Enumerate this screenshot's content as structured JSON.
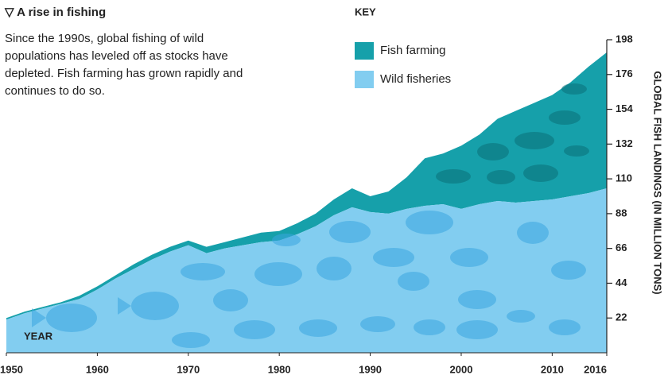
{
  "chart_data": {
    "type": "stacked-area",
    "title": "A rise in fishing",
    "subtitle": "Since the 1990s, global fishing of wild populations has leveled off as stocks have depleted. Fish farming has grown rapidly and continues to do so.",
    "legend_title": "KEY",
    "x_label": "YEAR",
    "y_label": "GLOBAL FISH LANDINGS (IN MILLION TONS)",
    "x": [
      1950,
      1952,
      1954,
      1956,
      1958,
      1960,
      1962,
      1964,
      1966,
      1968,
      1970,
      1972,
      1974,
      1976,
      1978,
      1980,
      1982,
      1984,
      1986,
      1988,
      1990,
      1992,
      1994,
      1996,
      1998,
      2000,
      2002,
      2004,
      2006,
      2008,
      2010,
      2012,
      2014,
      2016
    ],
    "series": [
      {
        "name": "Wild fisheries",
        "color": "#82cdf0",
        "values": [
          21,
          25,
          28,
          31,
          34,
          40,
          47,
          53,
          59,
          64,
          68,
          63,
          66,
          68,
          70,
          71,
          75,
          80,
          87,
          92,
          89,
          88,
          91,
          93,
          94,
          91,
          94,
          96,
          95,
          96,
          97,
          99,
          101,
          104
        ]
      },
      {
        "name": "Fish farming",
        "color": "#16a0aa",
        "values": [
          1,
          1,
          1,
          1,
          2,
          2,
          2,
          3,
          3,
          3,
          3,
          4,
          4,
          5,
          6,
          6,
          7,
          8,
          10,
          12,
          10,
          14,
          20,
          30,
          32,
          40,
          44,
          52,
          58,
          62,
          66,
          72,
          80,
          86
        ]
      }
    ],
    "xlim": [
      1950,
      2016
    ],
    "xticks": [
      1950,
      1960,
      1970,
      1980,
      1990,
      2000,
      2010,
      2016
    ],
    "ylim": [
      0,
      198
    ],
    "yticks": [
      22,
      44,
      66,
      88,
      110,
      132,
      154,
      176,
      198
    ],
    "y_axis_side": "right",
    "grid": false
  }
}
